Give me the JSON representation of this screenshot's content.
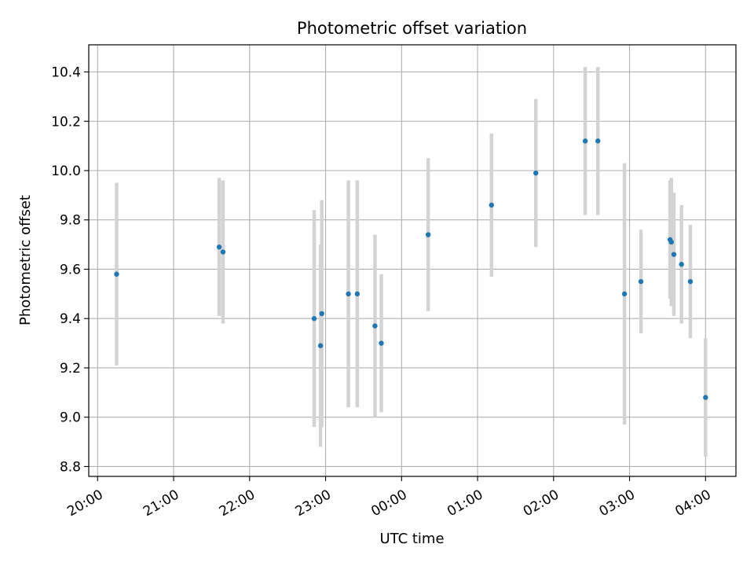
{
  "chart_data": {
    "type": "scatter",
    "title": "Photometric offset variation",
    "xlabel": "UTC time",
    "ylabel": "Photometric offset",
    "x_axis": "time",
    "xlim": [
      "19:53",
      "04:24"
    ],
    "ylim": [
      8.76,
      10.51
    ],
    "grid": true,
    "legend": "none",
    "colors": {
      "points": "#1f77b4",
      "errorbars": "#d3d3d3",
      "grid": "#b0b0b0",
      "frame": "#000000"
    },
    "x_ticks": [
      {
        "time": "20:00",
        "label": "20:00"
      },
      {
        "time": "21:00",
        "label": "21:00"
      },
      {
        "time": "22:00",
        "label": "22:00"
      },
      {
        "time": "23:00",
        "label": "23:00"
      },
      {
        "time": "00:00",
        "label": "00:00"
      },
      {
        "time": "01:00",
        "label": "01:00"
      },
      {
        "time": "02:00",
        "label": "02:00"
      },
      {
        "time": "03:00",
        "label": "03:00"
      },
      {
        "time": "04:00",
        "label": "04:00"
      }
    ],
    "y_ticks": [
      {
        "value": 8.8,
        "label": "8.8"
      },
      {
        "value": 9.0,
        "label": "9.0"
      },
      {
        "value": 9.2,
        "label": "9.2"
      },
      {
        "value": 9.4,
        "label": "9.4"
      },
      {
        "value": 9.6,
        "label": "9.6"
      },
      {
        "value": 9.8,
        "label": "9.8"
      },
      {
        "value": 10.0,
        "label": "10.0"
      },
      {
        "value": 10.2,
        "label": "10.2"
      },
      {
        "value": 10.4,
        "label": "10.4"
      }
    ],
    "points": [
      {
        "time": "20:15",
        "y": 9.58,
        "err": 0.37
      },
      {
        "time": "21:36",
        "y": 9.69,
        "err": 0.28
      },
      {
        "time": "21:39",
        "y": 9.67,
        "err": 0.29
      },
      {
        "time": "22:51",
        "y": 9.4,
        "err": 0.44
      },
      {
        "time": "22:56",
        "y": 9.29,
        "err": 0.41
      },
      {
        "time": "22:57",
        "y": 9.42,
        "err": 0.46
      },
      {
        "time": "23:18",
        "y": 9.5,
        "err": 0.46
      },
      {
        "time": "23:25",
        "y": 9.5,
        "err": 0.46
      },
      {
        "time": "23:39",
        "y": 9.37,
        "err": 0.37
      },
      {
        "time": "23:44",
        "y": 9.3,
        "err": 0.28
      },
      {
        "time": "00:21",
        "y": 9.74,
        "err": 0.31
      },
      {
        "time": "01:11",
        "y": 9.86,
        "err": 0.29
      },
      {
        "time": "01:46",
        "y": 9.99,
        "err": 0.3
      },
      {
        "time": "02:25",
        "y": 10.12,
        "err": 0.3
      },
      {
        "time": "02:35",
        "y": 10.12,
        "err": 0.3
      },
      {
        "time": "02:56",
        "y": 9.5,
        "err": 0.53
      },
      {
        "time": "03:09",
        "y": 9.55,
        "err": 0.21
      },
      {
        "time": "03:32",
        "y": 9.72,
        "err": 0.24
      },
      {
        "time": "03:33",
        "y": 9.71,
        "err": 0.26
      },
      {
        "time": "03:35",
        "y": 9.66,
        "err": 0.25
      },
      {
        "time": "03:41",
        "y": 9.62,
        "err": 0.24
      },
      {
        "time": "03:48",
        "y": 9.55,
        "err": 0.23
      },
      {
        "time": "04:00",
        "y": 9.08,
        "err": 0.24
      }
    ]
  }
}
